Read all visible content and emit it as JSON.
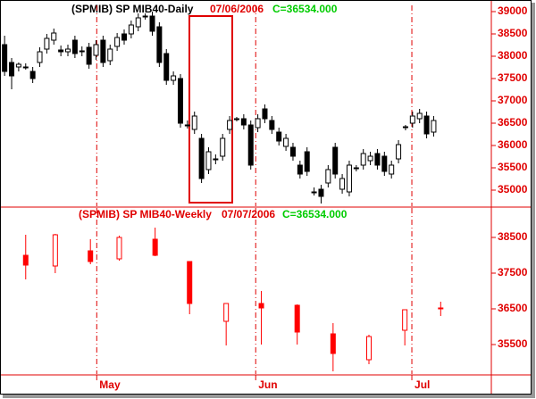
{
  "chart_data": [
    {
      "type": "candlestick",
      "title": "(SPMIB)  SP MIB40-Daily",
      "date": "07/06/2006",
      "close_text": "C=36534.000",
      "x": [
        0,
        1,
        2,
        3,
        4,
        5,
        6,
        7,
        8,
        9,
        10,
        11,
        12,
        13,
        14,
        15,
        16,
        17,
        18,
        19,
        20,
        21,
        22,
        23,
        24,
        25,
        26,
        27,
        28,
        29,
        30,
        31,
        32,
        33,
        34,
        35,
        36,
        37,
        38,
        39,
        40,
        41,
        42,
        43,
        44,
        45,
        46,
        47,
        48,
        49,
        50,
        51,
        52,
        53,
        54,
        55,
        56,
        57,
        58,
        59,
        60,
        61
      ],
      "open": [
        38260,
        37860,
        37760,
        37760,
        37660,
        37860,
        38160,
        38360,
        38140,
        38100,
        38360,
        38120,
        38200,
        38020,
        38360,
        37900,
        38220,
        38500,
        38500,
        38660,
        38900,
        38900,
        38660,
        38060,
        37460,
        37500,
        36460,
        36360,
        36160,
        35460,
        35700,
        35760,
        36360,
        36600,
        36600,
        36460,
        36400,
        36820,
        36560,
        36300,
        35980,
        35960,
        35560,
        35860,
        34960,
        35020,
        35160,
        35960,
        35020,
        34960,
        35500,
        35560,
        35660,
        35820,
        35760,
        35360,
        35700,
        36420,
        36500,
        36600,
        36660,
        36300
      ],
      "high": [
        38460,
        37960,
        37860,
        37840,
        37760,
        38200,
        38500,
        38620,
        38240,
        38260,
        38460,
        38220,
        38300,
        38360,
        38460,
        38260,
        38520,
        38600,
        38800,
        38960,
        38960,
        39000,
        38760,
        38160,
        37660,
        37600,
        36560,
        36760,
        36260,
        35960,
        35800,
        36260,
        36660,
        36640,
        36700,
        36560,
        36700,
        36920,
        36660,
        36400,
        36260,
        36060,
        35660,
        35960,
        35060,
        35120,
        35560,
        36060,
        35360,
        35660,
        35560,
        35920,
        35860,
        35920,
        35860,
        35660,
        36120,
        36460,
        36760,
        36820,
        36760,
        36660
      ],
      "low": [
        37560,
        37260,
        37660,
        37700,
        37400,
        37760,
        38060,
        38260,
        38000,
        38000,
        37960,
        38000,
        37720,
        37920,
        37760,
        37800,
        38120,
        38260,
        38400,
        38560,
        38820,
        38460,
        37760,
        37360,
        37360,
        36400,
        36380,
        36260,
        35160,
        35360,
        35580,
        35660,
        36260,
        36540,
        36360,
        35460,
        36300,
        36500,
        36260,
        36000,
        35880,
        35660,
        35260,
        35320,
        34880,
        34700,
        35060,
        35260,
        34920,
        34860,
        35420,
        35460,
        35560,
        35460,
        35320,
        35260,
        35600,
        36340,
        36400,
        36500,
        36160,
        36200
      ],
      "close": [
        37660,
        37560,
        37820,
        37760,
        37500,
        38100,
        38400,
        38520,
        38100,
        38160,
        38060,
        38100,
        37820,
        38260,
        37860,
        38160,
        38420,
        38360,
        38700,
        38860,
        38900,
        38560,
        37860,
        37460,
        37560,
        36500,
        36460,
        36660,
        35260,
        35860,
        35680,
        36160,
        36560,
        36600,
        36460,
        35560,
        36600,
        36600,
        36360,
        36100,
        36160,
        35760,
        35360,
        35420,
        34960,
        34860,
        35460,
        35360,
        35260,
        35560,
        35500,
        35820,
        35760,
        35560,
        35420,
        35560,
        36020,
        36420,
        36660,
        36720,
        36260,
        36560
      ],
      "colors": {
        "up": "#ffffff",
        "down": "#000000",
        "wick": "#000000"
      },
      "xlim": [
        -0.4,
        69.2
      ],
      "ylim": [
        34620,
        39160
      ],
      "yticks": [
        35000,
        35500,
        36000,
        36500,
        37000,
        37500,
        38000,
        38500,
        39000
      ]
    },
    {
      "type": "candlestick",
      "title": "(SPMIB)  SP MIB40-Weekly",
      "date": "07/07/2006",
      "close_text": "C=36534.000",
      "x": [
        3.0,
        7.2,
        12.2,
        16.3,
        21.4,
        26.3,
        31.5,
        36.5,
        41.6,
        46.7,
        51.8,
        56.9,
        62.0
      ],
      "open": [
        38000,
        37700,
        38125,
        37900,
        38450,
        37825,
        36150,
        36650,
        36600,
        35800,
        35075,
        35900,
        36525
      ],
      "high": [
        38575,
        38600,
        38450,
        38550,
        38775,
        37825,
        36650,
        37000,
        36625,
        36100,
        35775,
        36475,
        36700
      ],
      "low": [
        37325,
        37500,
        37750,
        37850,
        37975,
        36350,
        35475,
        35500,
        35500,
        34750,
        34950,
        35475,
        36300
      ],
      "close": [
        37725,
        38575,
        37825,
        38500,
        38000,
        36650,
        36650,
        36525,
        35850,
        35250,
        35725,
        36475,
        36500
      ],
      "colors": {
        "up": "#ffffff",
        "down": "#ff0000",
        "wick": "#ff0000"
      },
      "xlim": [
        -0.4,
        69.2
      ],
      "ylim": [
        34650,
        39350
      ],
      "yticks": [
        35500,
        36500,
        37500,
        38500
      ],
      "xticks": [
        {
          "value": 13.1,
          "label": "May"
        },
        {
          "value": 35.7,
          "label": "Jun"
        },
        {
          "value": 57.9,
          "label": "Jul"
        }
      ]
    }
  ]
}
